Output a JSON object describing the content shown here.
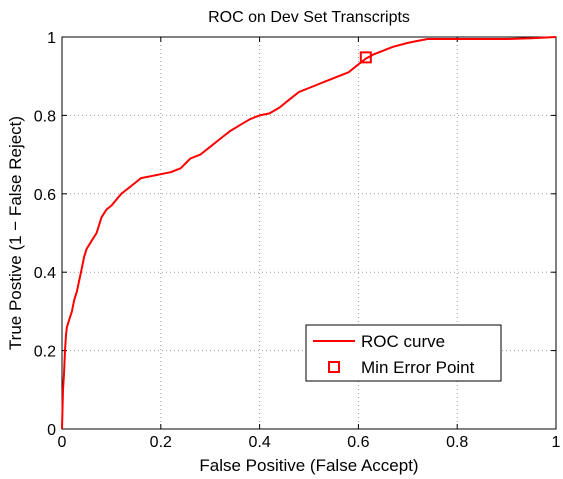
{
  "chart_data": {
    "type": "line",
    "title": "ROC on Dev Set Transcripts",
    "xlabel": "False Positive (False Accept)",
    "ylabel": "True Postive (1 − False Reject)",
    "xlim": [
      0,
      1
    ],
    "ylim": [
      0,
      1
    ],
    "xticks": [
      0,
      0.2,
      0.4,
      0.6,
      0.8,
      1
    ],
    "yticks": [
      0,
      0.2,
      0.4,
      0.6,
      0.8,
      1
    ],
    "xtick_labels": [
      "0",
      "0.2",
      "0.4",
      "0.6",
      "0.8",
      "1"
    ],
    "ytick_labels": [
      "0",
      "0.2",
      "0.4",
      "0.6",
      "0.8",
      "1"
    ],
    "grid": true,
    "legend_position": "lower-right",
    "series": [
      {
        "name": "ROC curve",
        "color": "#ff0000",
        "x": [
          0,
          0.002,
          0.004,
          0.006,
          0.008,
          0.01,
          0.015,
          0.02,
          0.025,
          0.03,
          0.035,
          0.04,
          0.045,
          0.05,
          0.055,
          0.06,
          0.07,
          0.08,
          0.09,
          0.1,
          0.12,
          0.14,
          0.16,
          0.18,
          0.2,
          0.22,
          0.24,
          0.26,
          0.28,
          0.3,
          0.32,
          0.34,
          0.36,
          0.38,
          0.4,
          0.42,
          0.44,
          0.46,
          0.48,
          0.5,
          0.52,
          0.54,
          0.56,
          0.58,
          0.6,
          0.615,
          0.63,
          0.65,
          0.67,
          0.7,
          0.72,
          0.74,
          0.76,
          0.8,
          0.85,
          0.9,
          0.95,
          1.0
        ],
        "y": [
          0,
          0.1,
          0.14,
          0.2,
          0.24,
          0.26,
          0.28,
          0.3,
          0.33,
          0.35,
          0.38,
          0.41,
          0.44,
          0.46,
          0.47,
          0.48,
          0.5,
          0.54,
          0.56,
          0.57,
          0.6,
          0.62,
          0.64,
          0.645,
          0.65,
          0.655,
          0.665,
          0.69,
          0.7,
          0.72,
          0.74,
          0.76,
          0.775,
          0.79,
          0.8,
          0.805,
          0.82,
          0.84,
          0.86,
          0.87,
          0.88,
          0.89,
          0.9,
          0.91,
          0.93,
          0.945,
          0.955,
          0.965,
          0.975,
          0.985,
          0.99,
          0.995,
          0.995,
          0.995,
          0.995,
          0.995,
          0.997,
          1.0
        ]
      },
      {
        "name": "Min Error Point",
        "color": "#ff0000",
        "marker": "square",
        "x": [
          0.615
        ],
        "y": [
          0.948
        ]
      }
    ]
  }
}
